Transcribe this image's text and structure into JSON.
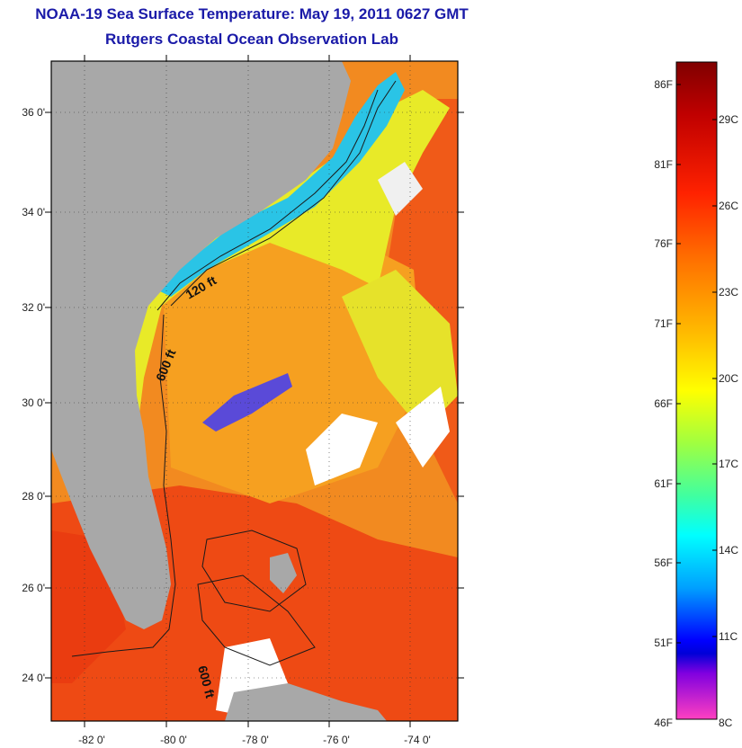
{
  "header": {
    "title": "NOAA-19 Sea Surface Temperature:  May 19, 2011 0627 GMT",
    "subtitle": "Rutgers Coastal Ocean Observation Lab"
  },
  "map": {
    "lat_labels": [
      "36 0'",
      "34 0'",
      "32 0'",
      "30 0'",
      "28 0'",
      "26 0'",
      "24 0'"
    ],
    "lon_labels": [
      "-82 0'",
      "-80 0'",
      "-78 0'",
      "-76 0'",
      "-74 0'"
    ],
    "contour_labels": [
      "120 ft",
      "600 ft",
      "600 ft"
    ],
    "colors": {
      "land": "#a8a8a8",
      "warm_water": "#f27a1c",
      "hot_water": "#ec3c12",
      "mild_water": "#f8b81e",
      "cool_water": "#e6f025",
      "cold_water": "#28c6e8",
      "cloud": "#ffffff",
      "contour": "#1a1a1a"
    }
  },
  "colorbar": {
    "fahrenheit_labels": [
      "86F",
      "81F",
      "76F",
      "71F",
      "66F",
      "61F",
      "56F",
      "51F",
      "46F"
    ],
    "celsius_labels": [
      "29C",
      "26C",
      "23C",
      "20C",
      "17C",
      "14C",
      "11C",
      "8C"
    ]
  }
}
